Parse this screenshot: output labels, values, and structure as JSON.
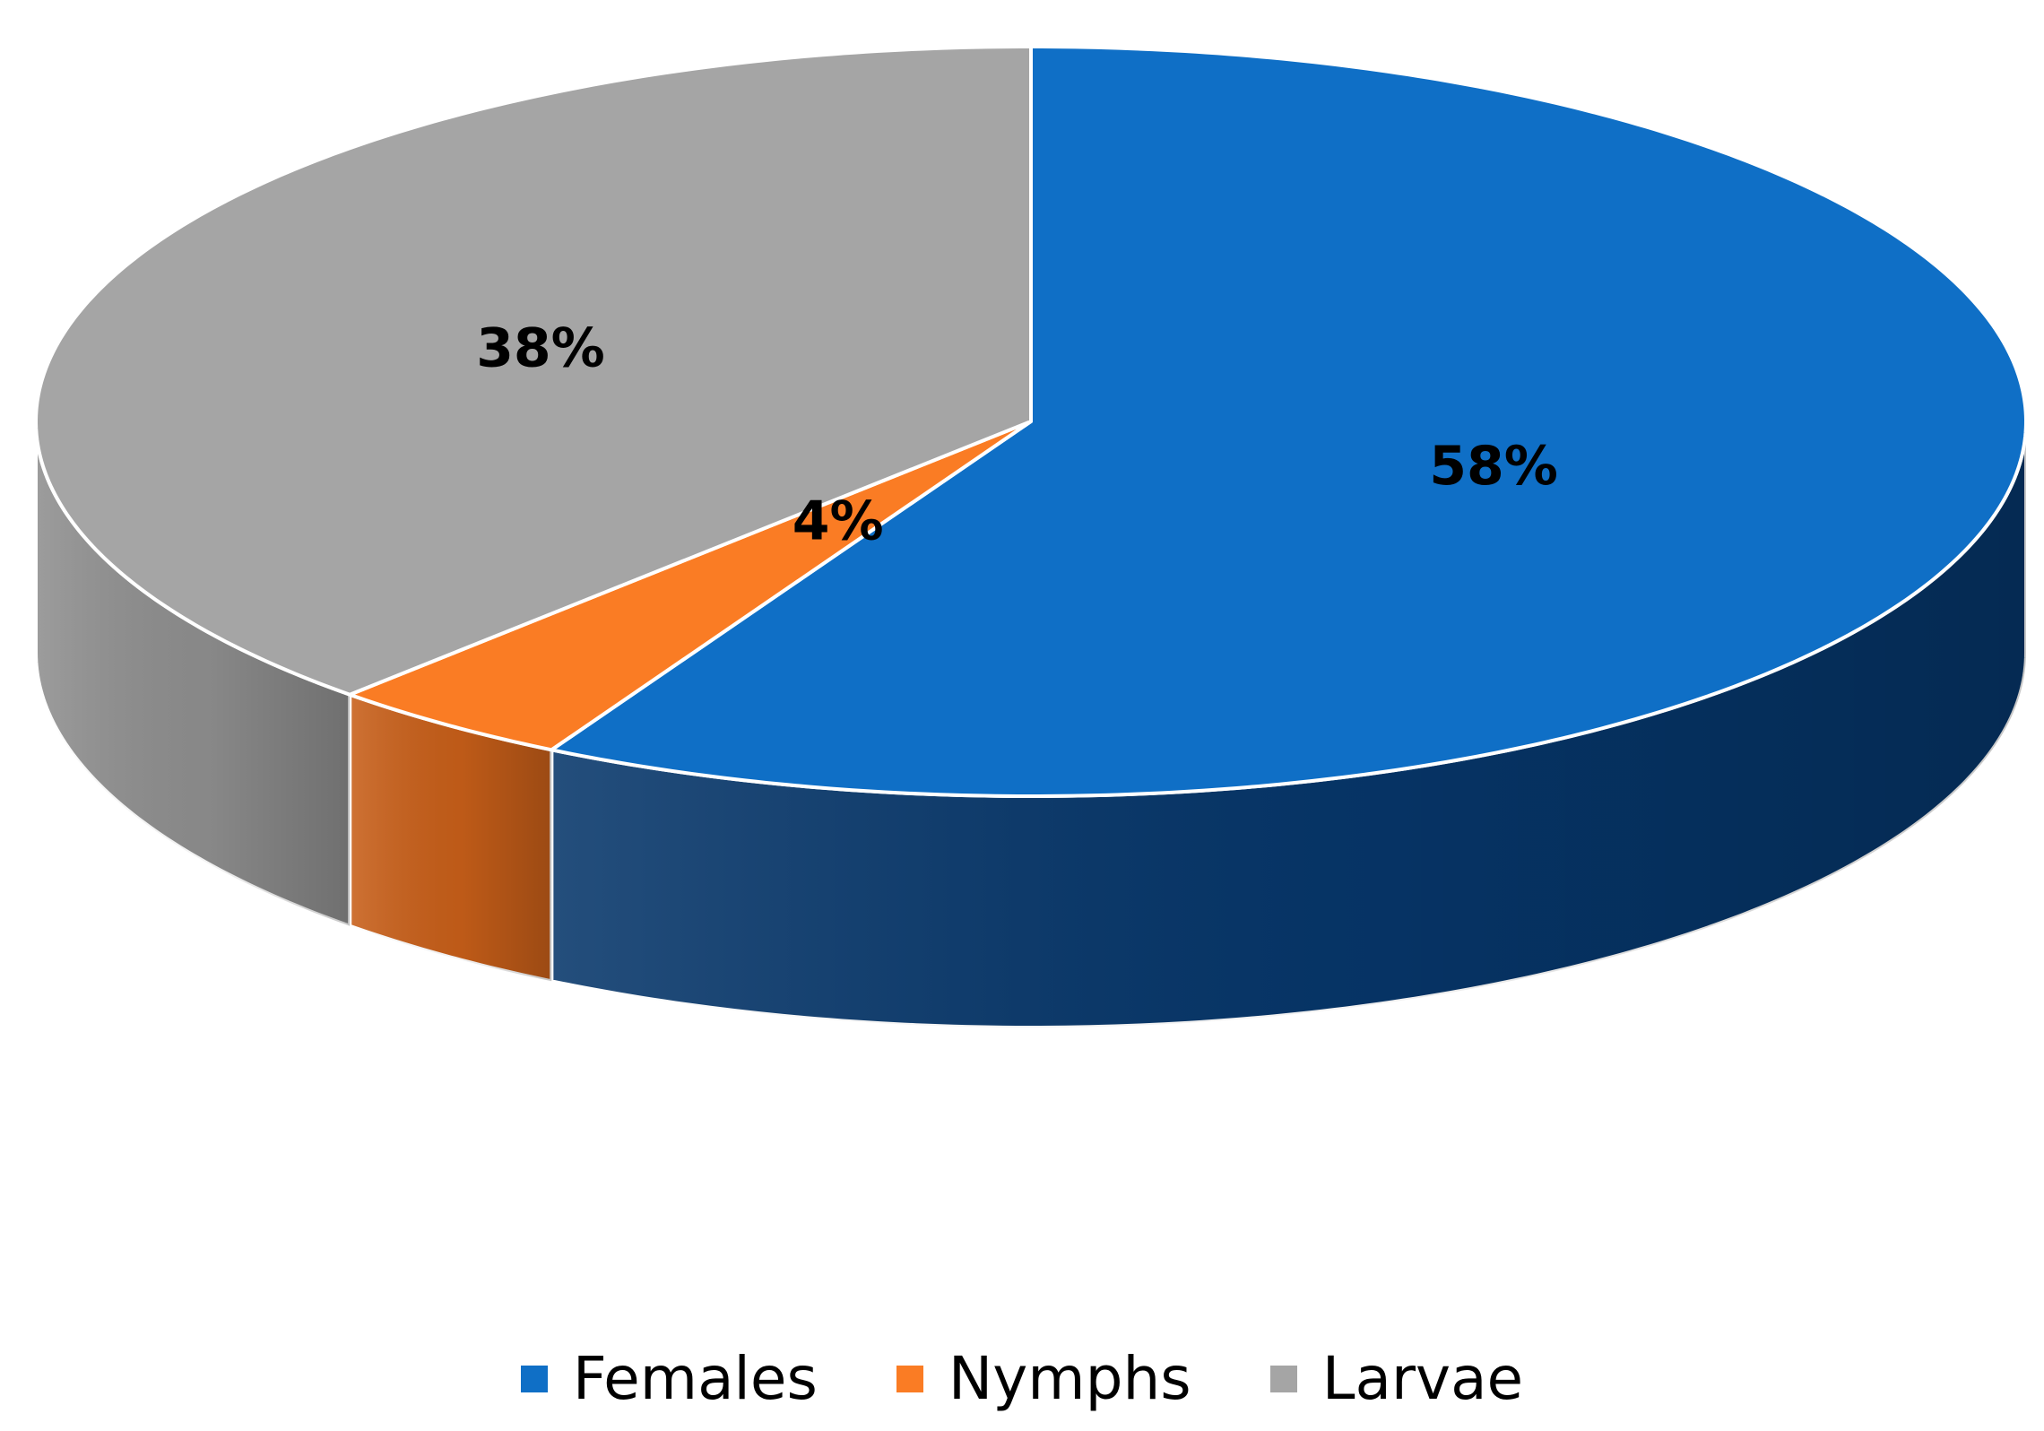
{
  "chart_data": {
    "type": "pie",
    "style": "3d",
    "title": "",
    "categories": [
      "Females",
      "Nymphs",
      "Larvae"
    ],
    "values": [
      58,
      4,
      38
    ],
    "value_labels": [
      "58%",
      "4%",
      "38%"
    ],
    "colors": [
      "#0F6FC6",
      "#FA7C24",
      "#A5A5A5"
    ],
    "side_colors": [
      "#06366A",
      "#C85F19",
      "#8F8F8F"
    ],
    "edge_color": "#FFFFFF",
    "start_angle": "12 o'clock",
    "direction": "clockwise",
    "legend_position": "bottom"
  }
}
